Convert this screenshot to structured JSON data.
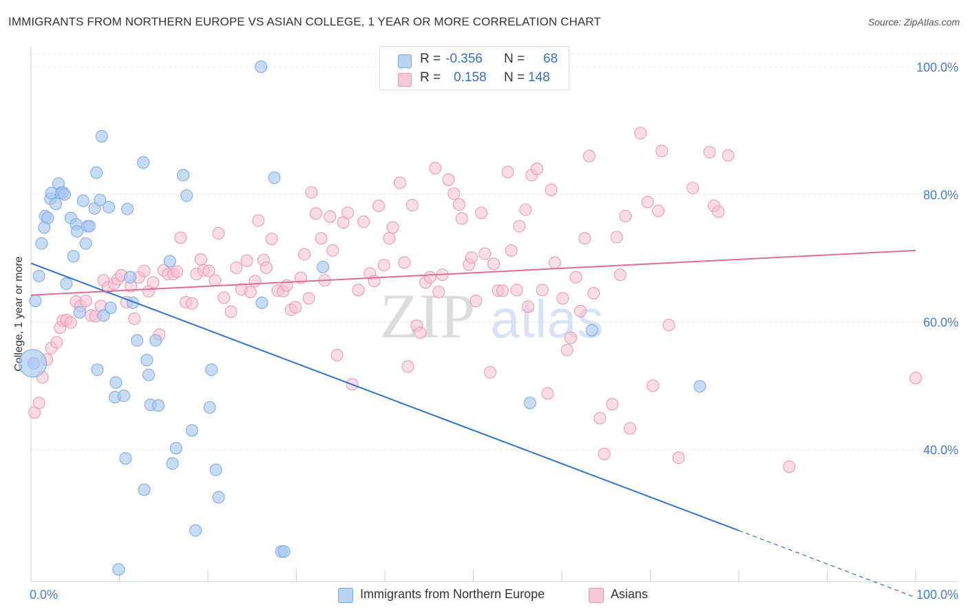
{
  "title": "IMMIGRANTS FROM NORTHERN EUROPE VS ASIAN COLLEGE, 1 YEAR OR MORE CORRELATION CHART",
  "source": "Source: ZipAtlas.com",
  "watermark": {
    "zip": "ZIP",
    "atlas": "atlas"
  },
  "colors": {
    "blue_fill": "#a9c8f0",
    "blue_stroke": "#7aa6e0",
    "blue_line": "#2f6fd0",
    "pink_fill": "#f5c0d0",
    "pink_stroke": "#ea94b0",
    "pink_line": "#e06a94",
    "axis_label": "#4a7ccc",
    "grid": "#e3e3e3"
  },
  "legend": {
    "row1": {
      "r_label": "R =",
      "r_value": "-0.356",
      "n_label": "N =",
      "n_value": "68"
    },
    "row2": {
      "r_label": "R =",
      "r_value": "0.158",
      "n_label": "N =",
      "n_value": "148"
    }
  },
  "chart_data": {
    "type": "scatter",
    "title": "IMMIGRANTS FROM NORTHERN EUROPE VS ASIAN COLLEGE, 1 YEAR OR MORE CORRELATION CHART",
    "xlabel": "",
    "ylabel": "College, 1 year or more",
    "xlim": [
      0,
      100
    ],
    "ylim": [
      20,
      102
    ],
    "x_tick_labels": [
      "0.0%",
      "100.0%"
    ],
    "y_ticks": [
      40,
      60,
      80,
      100
    ],
    "y_tick_labels": [
      "40.0%",
      "60.0%",
      "80.0%",
      "100.0%"
    ],
    "series": [
      {
        "name": "Immigrants from Northern Europe",
        "color": "blue",
        "trend": {
          "x0": 0,
          "y0": 69.2,
          "x1": 80,
          "y1": 27.3,
          "dashed_to_x": 100,
          "dashed_to_y": 16.8
        },
        "points": [
          [
            0.3,
            53.5
          ],
          [
            0.5,
            63.3
          ],
          [
            0.9,
            67.2
          ],
          [
            1.2,
            72.3
          ],
          [
            1.5,
            74.8
          ],
          [
            1.6,
            76.6
          ],
          [
            1.9,
            76.3
          ],
          [
            2.2,
            79.3
          ],
          [
            2.3,
            80.2
          ],
          [
            2.8,
            78.5
          ],
          [
            3.1,
            81.7
          ],
          [
            3.4,
            80.2
          ],
          [
            3.6,
            80.3
          ],
          [
            3.8,
            80.0
          ],
          [
            4.0,
            66.0
          ],
          [
            4.5,
            76.3
          ],
          [
            4.8,
            70.3
          ],
          [
            5.1,
            75.3
          ],
          [
            5.2,
            74.2
          ],
          [
            5.5,
            61.5
          ],
          [
            5.9,
            79.0
          ],
          [
            6.2,
            72.3
          ],
          [
            6.4,
            75.0
          ],
          [
            6.6,
            75.0
          ],
          [
            7.2,
            77.8
          ],
          [
            7.4,
            83.4
          ],
          [
            7.5,
            52.5
          ],
          [
            7.8,
            79.1
          ],
          [
            8.0,
            89.1
          ],
          [
            8.2,
            61.0
          ],
          [
            8.8,
            78.0
          ],
          [
            9.0,
            62.2
          ],
          [
            9.5,
            48.2
          ],
          [
            9.6,
            50.5
          ],
          [
            9.9,
            21.2
          ],
          [
            10.5,
            48.4
          ],
          [
            10.7,
            38.6
          ],
          [
            10.9,
            77.7
          ],
          [
            11.2,
            67.0
          ],
          [
            11.5,
            63.0
          ],
          [
            12.0,
            57.1
          ],
          [
            12.7,
            85.0
          ],
          [
            12.8,
            33.7
          ],
          [
            13.1,
            54.0
          ],
          [
            13.3,
            51.7
          ],
          [
            13.5,
            47.0
          ],
          [
            14.1,
            57.1
          ],
          [
            14.4,
            46.9
          ],
          [
            15.7,
            69.5
          ],
          [
            16.0,
            37.8
          ],
          [
            16.4,
            40.2
          ],
          [
            17.2,
            83.0
          ],
          [
            17.6,
            79.8
          ],
          [
            18.2,
            43.0
          ],
          [
            18.6,
            27.3
          ],
          [
            20.2,
            46.6
          ],
          [
            20.4,
            52.5
          ],
          [
            20.9,
            36.8
          ],
          [
            21.2,
            32.5
          ],
          [
            26.1,
            63.0
          ],
          [
            26.0,
            100.0
          ],
          [
            27.5,
            82.6
          ],
          [
            28.3,
            24.0
          ],
          [
            28.6,
            24.0
          ],
          [
            33.0,
            68.6
          ],
          [
            56.4,
            47.3
          ],
          [
            75.6,
            49.9
          ],
          [
            63.4,
            58.7
          ]
        ],
        "large_point": [
          0.2,
          53.5
        ]
      },
      {
        "name": "Asians",
        "color": "pink",
        "trend": {
          "x0": 0,
          "y0": 64.2,
          "x1": 100,
          "y1": 71.2
        },
        "points": [
          [
            0.4,
            45.8
          ],
          [
            0.9,
            47.3
          ],
          [
            1.3,
            51.3
          ],
          [
            1.8,
            54.1
          ],
          [
            2.3,
            55.9
          ],
          [
            2.9,
            56.8
          ],
          [
            3.3,
            59.1
          ],
          [
            3.6,
            60.2
          ],
          [
            4.0,
            60.3
          ],
          [
            4.5,
            59.9
          ],
          [
            5.1,
            63.2
          ],
          [
            5.6,
            62.5
          ],
          [
            6.2,
            63.3
          ],
          [
            6.8,
            61.0
          ],
          [
            7.3,
            60.9
          ],
          [
            7.9,
            62.5
          ],
          [
            8.2,
            66.5
          ],
          [
            8.7,
            65.4
          ],
          [
            9.4,
            66.0
          ],
          [
            9.8,
            66.7
          ],
          [
            10.2,
            67.3
          ],
          [
            10.8,
            63.1
          ],
          [
            11.3,
            65.6
          ],
          [
            11.7,
            60.5
          ],
          [
            12.2,
            67.0
          ],
          [
            12.8,
            68.0
          ],
          [
            13.3,
            64.8
          ],
          [
            13.8,
            66.2
          ],
          [
            14.5,
            58.0
          ],
          [
            15.0,
            68.1
          ],
          [
            15.5,
            67.5
          ],
          [
            16.1,
            67.5
          ],
          [
            16.5,
            67.9
          ],
          [
            16.9,
            73.2
          ],
          [
            17.5,
            63.1
          ],
          [
            18.2,
            62.9
          ],
          [
            18.7,
            67.5
          ],
          [
            19.2,
            69.8
          ],
          [
            19.5,
            68.1
          ],
          [
            20.1,
            68.0
          ],
          [
            20.8,
            66.5
          ],
          [
            21.2,
            73.9
          ],
          [
            21.8,
            63.8
          ],
          [
            22.6,
            61.6
          ],
          [
            23.2,
            68.5
          ],
          [
            23.8,
            65.1
          ],
          [
            24.4,
            69.6
          ],
          [
            24.8,
            64.7
          ],
          [
            25.3,
            66.4
          ],
          [
            25.7,
            75.9
          ],
          [
            26.3,
            69.7
          ],
          [
            26.6,
            68.5
          ],
          [
            27.2,
            73.0
          ],
          [
            27.9,
            64.9
          ],
          [
            28.5,
            64.8
          ],
          [
            28.9,
            65.7
          ],
          [
            29.4,
            61.9
          ],
          [
            29.9,
            62.3
          ],
          [
            30.5,
            66.9
          ],
          [
            30.9,
            70.6
          ],
          [
            31.4,
            63.7
          ],
          [
            31.7,
            80.3
          ],
          [
            32.2,
            77.0
          ],
          [
            32.8,
            73.1
          ],
          [
            33.2,
            66.5
          ],
          [
            33.8,
            76.5
          ],
          [
            34.1,
            71.2
          ],
          [
            34.6,
            54.8
          ],
          [
            35.3,
            75.6
          ],
          [
            35.8,
            77.1
          ],
          [
            36.3,
            50.2
          ],
          [
            37.0,
            65.0
          ],
          [
            37.6,
            75.7
          ],
          [
            38.3,
            67.6
          ],
          [
            38.8,
            66.4
          ],
          [
            39.3,
            78.2
          ],
          [
            39.9,
            68.9
          ],
          [
            40.5,
            73.1
          ],
          [
            40.9,
            74.8
          ],
          [
            41.7,
            81.8
          ],
          [
            42.2,
            69.3
          ],
          [
            42.6,
            53.0
          ],
          [
            43.1,
            78.3
          ],
          [
            43.6,
            59.4
          ],
          [
            44.0,
            58.3
          ],
          [
            44.6,
            66.2
          ],
          [
            45.1,
            67.0
          ],
          [
            45.7,
            84.1
          ],
          [
            46.1,
            64.7
          ],
          [
            46.5,
            67.4
          ],
          [
            47.2,
            82.3
          ],
          [
            47.8,
            80.1
          ],
          [
            48.4,
            78.4
          ],
          [
            48.7,
            76.2
          ],
          [
            49.5,
            69.0
          ],
          [
            49.8,
            70.1
          ],
          [
            50.3,
            63.3
          ],
          [
            50.9,
            77.1
          ],
          [
            51.3,
            70.7
          ],
          [
            51.9,
            52.1
          ],
          [
            52.3,
            69.1
          ],
          [
            52.8,
            64.9
          ],
          [
            53.3,
            64.9
          ],
          [
            53.9,
            83.5
          ],
          [
            54.3,
            71.2
          ],
          [
            54.9,
            65.0
          ],
          [
            55.2,
            75.0
          ],
          [
            55.9,
            77.6
          ],
          [
            56.2,
            62.4
          ],
          [
            56.6,
            83.0
          ],
          [
            57.2,
            84.0
          ],
          [
            57.8,
            65.0
          ],
          [
            58.4,
            48.8
          ],
          [
            58.8,
            80.7
          ],
          [
            59.2,
            69.3
          ],
          [
            60.1,
            63.7
          ],
          [
            60.6,
            55.6
          ],
          [
            61.0,
            57.5
          ],
          [
            61.6,
            67.0
          ],
          [
            62.1,
            61.7
          ],
          [
            62.6,
            73.1
          ],
          [
            63.1,
            86.0
          ],
          [
            63.6,
            64.5
          ],
          [
            64.3,
            44.9
          ],
          [
            64.8,
            39.3
          ],
          [
            65.7,
            47.1
          ],
          [
            66.2,
            73.3
          ],
          [
            66.6,
            67.4
          ],
          [
            67.2,
            76.6
          ],
          [
            67.7,
            43.3
          ],
          [
            68.9,
            89.6
          ],
          [
            69.7,
            78.8
          ],
          [
            70.3,
            50.0
          ],
          [
            70.9,
            77.4
          ],
          [
            71.3,
            86.8
          ],
          [
            72.1,
            59.5
          ],
          [
            73.2,
            38.7
          ],
          [
            74.8,
            81.0
          ],
          [
            76.7,
            86.6
          ],
          [
            77.2,
            78.2
          ],
          [
            78.8,
            86.1
          ],
          [
            77.7,
            77.3
          ],
          [
            85.7,
            37.3
          ],
          [
            100.0,
            51.2
          ]
        ]
      }
    ]
  },
  "bottom_legend": {
    "item1": "Immigrants from Northern Europe",
    "item2": "Asians"
  }
}
